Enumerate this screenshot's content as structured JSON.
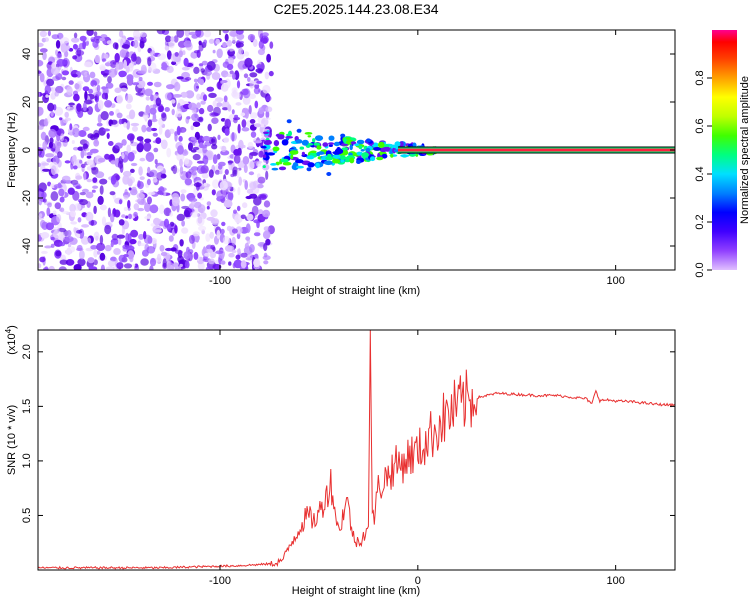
{
  "title": "C2E5.2025.144.23.08.E34",
  "chart_data": [
    {
      "type": "heatmap",
      "xlabel": "Height of straight line (km)",
      "ylabel": "Frequency (Hz)",
      "xlim": [
        -192,
        130
      ],
      "ylim": [
        -50,
        50
      ],
      "x_ticks": [
        -100,
        0,
        100
      ],
      "x_tick_labels": [
        "-100",
        "",
        "100"
      ],
      "y_ticks": [
        -40,
        -20,
        0,
        20,
        40
      ],
      "y_tick_labels": [
        "-40",
        "-20",
        "0",
        "20",
        "40"
      ],
      "colorbar": {
        "label": "Normalized spectral amplitude",
        "range": [
          0,
          1
        ],
        "ticks": [
          0.0,
          0.2,
          0.4,
          0.6,
          0.8
        ],
        "tick_labels": [
          "0.0",
          "0.2",
          "0.4",
          "0.6",
          "0.8"
        ],
        "colors": [
          "#e0c0ff",
          "#9040ff",
          "#4000ff",
          "#0000ff",
          "#0080ff",
          "#00e0ff",
          "#00ff80",
          "#40ff00",
          "#c0ff00",
          "#ffff00",
          "#ffa000",
          "#ff4000",
          "#ff0000",
          "#ff0090"
        ]
      },
      "regions": {
        "noise_x_range": [
          -192,
          -78
        ],
        "transition_x_range": [
          -78,
          10
        ],
        "line_x_range": [
          10,
          130
        ],
        "line_frequency": 0,
        "line_color": "#ff2040"
      }
    },
    {
      "type": "line",
      "xlabel": "Height of straight line (km)",
      "ylabel": "SNR (10 * v/v)",
      "multiplier_label": "(x10",
      "multiplier_exp": "4",
      "multiplier_close": ")",
      "xlim": [
        -192,
        130
      ],
      "ylim": [
        0,
        2.2
      ],
      "x_ticks": [
        -100,
        0,
        100
      ],
      "x_tick_labels": [
        "-100",
        "0",
        "100"
      ],
      "y_ticks": [
        0.5,
        1.0,
        1.5,
        2.0
      ],
      "y_tick_labels": [
        "0.5",
        "1.0",
        "1.5",
        "2.0"
      ],
      "series": [
        {
          "color": "#e83030",
          "x": [
            -192,
            -170,
            -150,
            -130,
            -110,
            -90,
            -80,
            -72,
            -68,
            -64,
            -60,
            -56,
            -52,
            -48,
            -44,
            -40,
            -36,
            -32,
            -28,
            -25,
            -24,
            -23,
            -22,
            -20,
            -16,
            -12,
            -8,
            -4,
            0,
            5,
            10,
            15,
            20,
            25,
            30,
            35,
            40,
            50,
            60,
            70,
            80,
            85,
            88,
            90,
            92,
            95,
            100,
            110,
            120,
            130
          ],
          "y": [
            0.02,
            0.02,
            0.02,
            0.02,
            0.03,
            0.04,
            0.05,
            0.06,
            0.1,
            0.25,
            0.38,
            0.5,
            0.45,
            0.6,
            0.8,
            0.35,
            0.65,
            0.25,
            0.3,
            0.4,
            2.2,
            0.45,
            0.5,
            0.75,
            0.85,
            0.95,
            0.98,
            1.05,
            1.08,
            1.2,
            1.32,
            1.42,
            1.5,
            1.55,
            1.58,
            1.6,
            1.62,
            1.61,
            1.6,
            1.6,
            1.58,
            1.57,
            1.52,
            1.65,
            1.55,
            1.56,
            1.55,
            1.54,
            1.52,
            1.51
          ]
        }
      ]
    }
  ]
}
